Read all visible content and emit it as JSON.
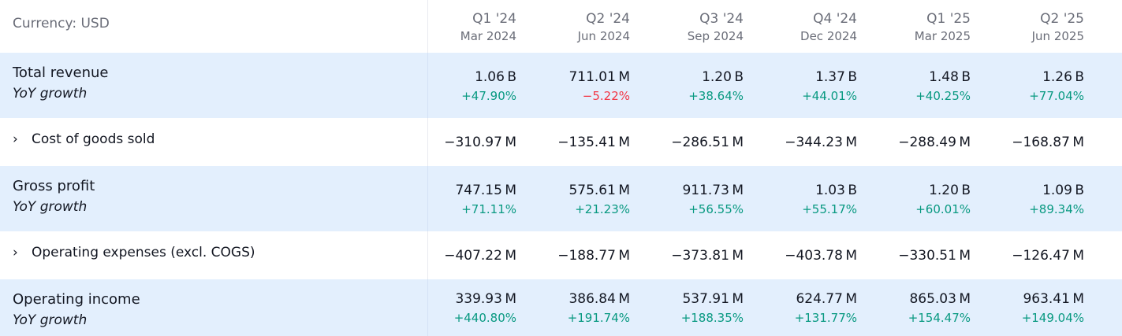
{
  "header": {
    "currency_label": "Currency: USD",
    "periods": [
      {
        "quarter": "Q1 '24",
        "date": "Mar 2024"
      },
      {
        "quarter": "Q2 '24",
        "date": "Jun 2024"
      },
      {
        "quarter": "Q3 '24",
        "date": "Sep 2024"
      },
      {
        "quarter": "Q4 '24",
        "date": "Dec 2024"
      },
      {
        "quarter": "Q1 '25",
        "date": "Mar 2025"
      },
      {
        "quarter": "Q2 '25",
        "date": "Jun 2025"
      }
    ]
  },
  "rows": {
    "total_revenue": {
      "label": "Total revenue",
      "sub_label": "YoY growth",
      "values": [
        "1.06 B",
        "711.01 M",
        "1.20 B",
        "1.37 B",
        "1.48 B",
        "1.26 B"
      ],
      "growth": [
        "+47.90%",
        "−5.22%",
        "+38.64%",
        "+44.01%",
        "+40.25%",
        "+77.04%"
      ]
    },
    "cogs": {
      "chevron": "›",
      "label": "Cost of goods sold",
      "values": [
        "−310.97 M",
        "−135.41 M",
        "−286.51 M",
        "−344.23 M",
        "−288.49 M",
        "−168.87 M"
      ]
    },
    "gross_profit": {
      "label": "Gross profit",
      "sub_label": "YoY growth",
      "values": [
        "747.15 M",
        "575.61 M",
        "911.73 M",
        "1.03 B",
        "1.20 B",
        "1.09 B"
      ],
      "growth": [
        "+71.11%",
        "+21.23%",
        "+56.55%",
        "+55.17%",
        "+60.01%",
        "+89.34%"
      ]
    },
    "opex": {
      "chevron": "›",
      "label": "Operating expenses (excl. COGS)",
      "values": [
        "−407.22 M",
        "−188.77 M",
        "−373.81 M",
        "−403.78 M",
        "−330.51 M",
        "−126.47 M"
      ]
    },
    "operating_income": {
      "label": "Operating income",
      "sub_label": "YoY growth",
      "values": [
        "339.93 M",
        "386.84 M",
        "537.91 M",
        "624.77 M",
        "865.03 M",
        "963.41 M"
      ],
      "growth": [
        "+440.80%",
        "+191.74%",
        "+188.35%",
        "+131.77%",
        "+154.47%",
        "+149.04%"
      ]
    }
  },
  "colors": {
    "positive": "#089981",
    "negative": "#f23645",
    "highlight_row": "#e3effd",
    "muted_text": "#6a6d78"
  }
}
